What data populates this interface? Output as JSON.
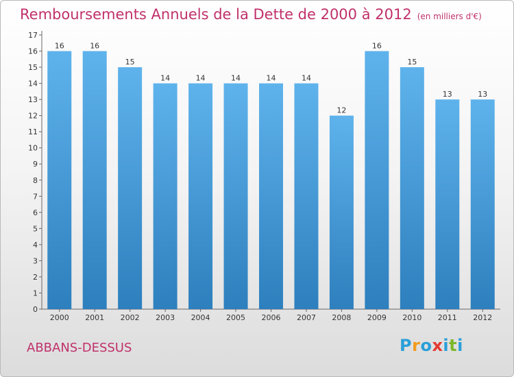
{
  "title": "Remboursements Annuels de la Dette de 2000 à 2012",
  "subtitle": "(en milliers d'€)",
  "commune": "ABBANS-DESSUS",
  "logo": {
    "letters": [
      "P",
      "r",
      "o",
      "x",
      "i",
      "t",
      "i"
    ],
    "colors": [
      "#2a9fd8",
      "#f39a1f",
      "#2a9fd8",
      "#e33a31",
      "#2a9fd8",
      "#7cb728",
      "#2a9fd8"
    ]
  },
  "colors": {
    "bar_light": "#5fb3ec",
    "bar_dark": "#2d7fbd",
    "title": "#c0306a"
  },
  "chart_data": {
    "type": "bar",
    "title": "Remboursements Annuels de la Dette de 2000 à 2012",
    "categories": [
      "2000",
      "2001",
      "2002",
      "2003",
      "2004",
      "2005",
      "2006",
      "2007",
      "2008",
      "2009",
      "2010",
      "2011",
      "2012"
    ],
    "values": [
      16,
      16,
      15,
      14,
      14,
      14,
      14,
      14,
      12,
      16,
      15,
      13,
      13
    ],
    "ylim": [
      0,
      17
    ],
    "yticks": [
      0,
      1,
      2,
      3,
      4,
      5,
      6,
      7,
      8,
      9,
      10,
      11,
      12,
      13,
      14,
      15,
      16,
      17
    ],
    "grid": false,
    "xlabel": "",
    "ylabel": ""
  }
}
